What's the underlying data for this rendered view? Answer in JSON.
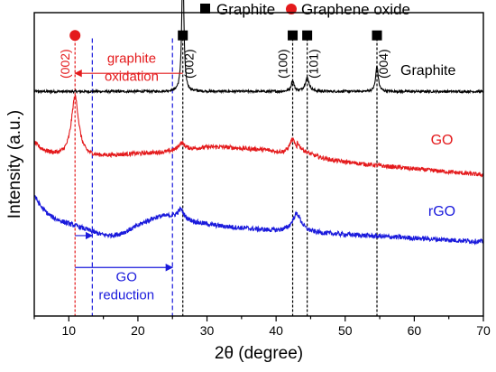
{
  "chart_data": {
    "type": "line",
    "xlabel": "2θ (degree)",
    "ylabel": "Intensity (a.u.)",
    "xlim": [
      5,
      70
    ],
    "x_ticks": [
      10,
      20,
      30,
      40,
      50,
      60,
      70
    ],
    "y_ticks_shown": false,
    "legend": {
      "placement": "top",
      "entries": [
        {
          "label": "Graphite",
          "marker": "square",
          "color": "#000000"
        },
        {
          "label": "Graphene oxide",
          "marker": "circle",
          "color": "#e41a1c"
        }
      ]
    },
    "series": [
      {
        "name": "Graphite",
        "color": "#000000",
        "label_x": 62,
        "baseline": 0.74,
        "noise": 0.004,
        "peaks": [
          {
            "x": 26.5,
            "height": 0.43,
            "width": 0.18
          },
          {
            "x": 42.4,
            "height": 0.035,
            "width": 0.25
          },
          {
            "x": 44.5,
            "height": 0.045,
            "width": 0.35
          },
          {
            "x": 54.6,
            "height": 0.085,
            "width": 0.22
          }
        ]
      },
      {
        "name": "GO",
        "color": "#e41a1c",
        "label_x": 64,
        "baseline": 0.515,
        "noise": 0.007,
        "peaks": [
          {
            "x": 10.9,
            "height": 0.2,
            "width": 0.65
          },
          {
            "x": 42.4,
            "height": 0.055,
            "width": 0.6
          },
          {
            "x": 26.3,
            "height": 0.025,
            "width": 0.6
          }
        ]
      },
      {
        "name": "rGO",
        "color": "#1a1adc",
        "label_x": 64,
        "baseline": 0.3,
        "noise": 0.008,
        "peaks": [
          {
            "x": 26.2,
            "height": 0.03,
            "width": 0.5
          },
          {
            "x": 43,
            "height": 0.06,
            "width": 0.8
          }
        ]
      }
    ],
    "peak_markers": [
      {
        "x": 10.9,
        "type": "graphene-oxide"
      },
      {
        "x": 26.5,
        "type": "graphite"
      },
      {
        "x": 42.4,
        "type": "graphite"
      },
      {
        "x": 44.5,
        "type": "graphite"
      },
      {
        "x": 54.6,
        "type": "graphite"
      }
    ],
    "peak_labels": [
      {
        "text": "(002)",
        "x": 10.9,
        "color": "#e41a1c",
        "side": "left"
      },
      {
        "text": "(002)",
        "x": 26.5,
        "color": "#000000",
        "side": "right"
      },
      {
        "text": "(100)",
        "x": 42.4,
        "color": "#000000",
        "side": "left"
      },
      {
        "text": "(101)",
        "x": 44.5,
        "color": "#000000",
        "side": "right"
      },
      {
        "text": "(004)",
        "x": 54.6,
        "color": "#000000",
        "side": "right"
      }
    ],
    "reference_lines": [
      {
        "x": 10.9,
        "color": "#e41a1c",
        "style": "dotted"
      },
      {
        "x": 13.4,
        "color": "#1a1adc",
        "style": "dashed"
      },
      {
        "x": 25.0,
        "color": "#1a1adc",
        "style": "dashed"
      },
      {
        "x": 26.5,
        "color": "#000000",
        "style": "dotted"
      },
      {
        "x": 42.4,
        "color": "#000000",
        "style": "dotted"
      },
      {
        "x": 44.5,
        "color": "#000000",
        "style": "dotted"
      },
      {
        "x": 54.6,
        "color": "#000000",
        "style": "dotted"
      }
    ],
    "annotations": [
      {
        "lines": [
          "graphite",
          "oxidation"
        ],
        "color": "#e41a1c",
        "arrow_from": 26.5,
        "arrow_to": 10.9
      },
      {
        "lines": [
          "GO",
          "reduction"
        ],
        "color": "#1a1adc",
        "arrow_from": 10.9,
        "arrow_to": 25.0
      },
      {
        "lines": [],
        "color": "#1a1adc",
        "arrow_from": 10.9,
        "arrow_to": 13.4
      }
    ]
  }
}
